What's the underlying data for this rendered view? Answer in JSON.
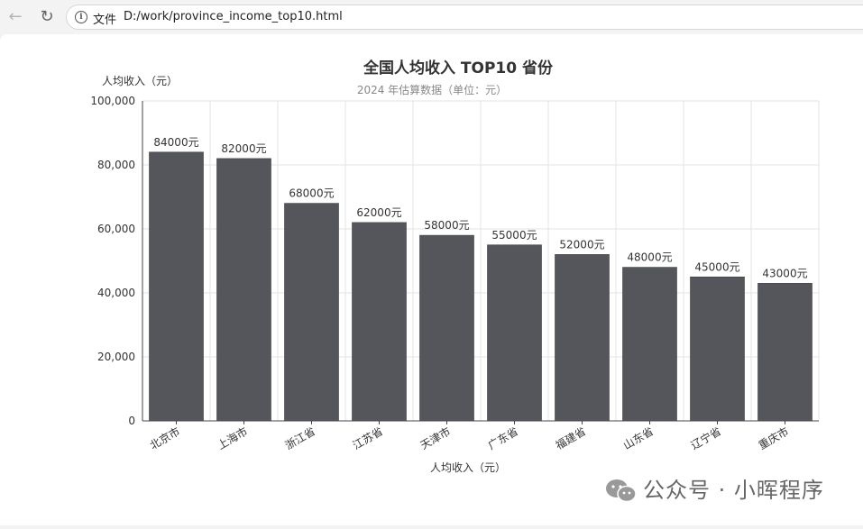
{
  "browser": {
    "back_icon": "arrow-left-icon",
    "reload_icon": "reload-icon",
    "info_icon": "info-icon",
    "scheme_label": "文件",
    "url": "D:/work/province_income_top10.html"
  },
  "chart_data": {
    "type": "bar",
    "title": "全国人均收入 TOP10 省份",
    "subtitle": "2024 年估算数据（单位：元）",
    "ylabel": "人均收入（元）",
    "xlabel": "人均收入（元）",
    "categories": [
      "北京市",
      "上海市",
      "浙江省",
      "江苏省",
      "天津市",
      "广东省",
      "福建省",
      "山东省",
      "辽宁省",
      "重庆市"
    ],
    "values": [
      84000,
      82000,
      68000,
      62000,
      58000,
      55000,
      52000,
      48000,
      45000,
      43000
    ],
    "value_labels": [
      "84000元",
      "82000元",
      "68000元",
      "62000元",
      "58000元",
      "55000元",
      "52000元",
      "48000元",
      "45000元",
      "43000元"
    ],
    "yticks": [
      "0",
      "20,000",
      "40,000",
      "60,000",
      "80,000",
      "100,000"
    ],
    "ylim": [
      0,
      100000
    ],
    "grid": true,
    "bar_color": "#55565b"
  },
  "watermark": {
    "text": "公众号 · 小晖程序",
    "icon": "wechat-icon"
  }
}
